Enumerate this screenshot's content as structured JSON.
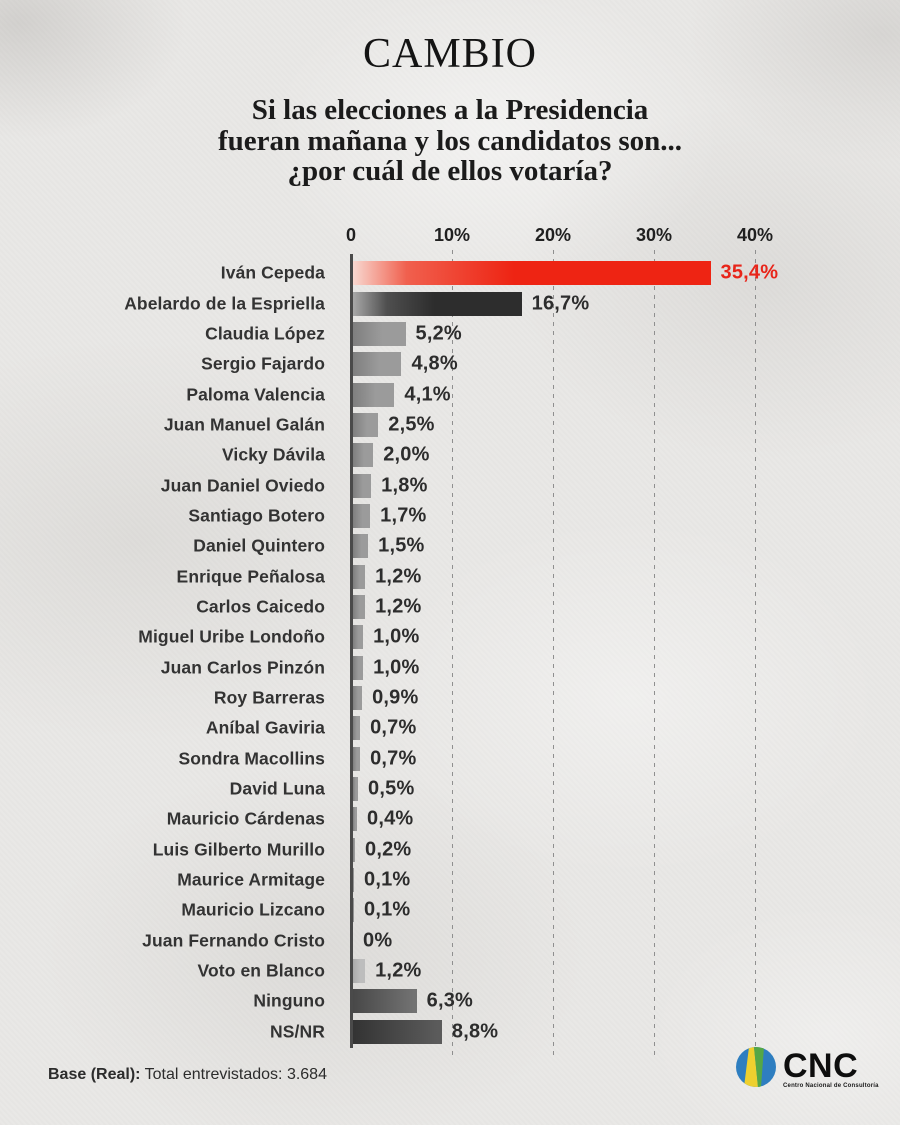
{
  "header": {
    "brand": "CAMBIO",
    "title_lines": [
      "Si las elecciones a la Presidencia",
      "fueran mañana y los candidatos son...",
      "¿por cuál de ellos votaría?"
    ]
  },
  "chart_data": {
    "type": "bar",
    "orientation": "horizontal",
    "title": "Si las elecciones a la Presidencia fueran mañana y los candidatos son... ¿por cuál de ellos votaría?",
    "xlabel": "",
    "ylabel": "",
    "xlim": [
      0,
      40
    ],
    "grid": "vertical-dashed",
    "legend": "none",
    "axis_ticks": [
      {
        "label": "0",
        "value": 0
      },
      {
        "label": "10%",
        "value": 10
      },
      {
        "label": "20%",
        "value": 20
      },
      {
        "label": "30%",
        "value": 30
      },
      {
        "label": "40%",
        "value": 40
      }
    ],
    "categories": [
      "Iván Cepeda",
      "Abelardo de la Espriella",
      "Claudia López",
      "Sergio Fajardo",
      "Paloma Valencia",
      "Juan Manuel Galán",
      "Vicky Dávila",
      "Juan Daniel Oviedo",
      "Santiago Botero",
      "Daniel Quintero",
      "Enrique Peñalosa",
      "Carlos Caicedo",
      "Miguel Uribe Londoño",
      "Juan Carlos Pinzón",
      "Roy Barreras",
      "Aníbal Gaviria",
      "Sondra Macollins",
      "David Luna",
      "Mauricio Cárdenas",
      "Luis Gilberto Murillo",
      "Maurice Armitage",
      "Mauricio Lizcano",
      "Juan Fernando Cristo",
      "Voto en Blanco",
      "Ninguno",
      "NS/NR"
    ],
    "values": [
      35.4,
      16.7,
      5.2,
      4.8,
      4.1,
      2.5,
      2.0,
      1.8,
      1.7,
      1.5,
      1.2,
      1.2,
      1.0,
      1.0,
      0.9,
      0.7,
      0.7,
      0.5,
      0.4,
      0.2,
      0.1,
      0.1,
      0,
      1.2,
      6.3,
      8.8
    ],
    "value_labels": [
      "35,4%",
      "16,7%",
      "5,2%",
      "4,8%",
      "4,1%",
      "2,5%",
      "2,0%",
      "1,8%",
      "1,7%",
      "1,5%",
      "1,2%",
      "1,2%",
      "1,0%",
      "1,0%",
      "0,9%",
      "0,7%",
      "0,7%",
      "0,5%",
      "0,4%",
      "0,2%",
      "0,1%",
      "0,1%",
      "0%",
      "1,2%",
      "6,3%",
      "8,8%"
    ],
    "bar_styles": [
      "red",
      "dark",
      "gray",
      "gray",
      "gray",
      "gray",
      "gray",
      "gray",
      "gray",
      "gray",
      "gray",
      "gray",
      "gray",
      "gray",
      "gray",
      "gray",
      "gray",
      "gray",
      "gray",
      "gray",
      "gray",
      "gray",
      "none",
      "light",
      "mid",
      "deep"
    ]
  },
  "palette": {
    "red": [
      "#f8d8d0 0%",
      "#f0604e 15%",
      "#ee2413 45%"
    ],
    "dark": [
      "#a8a8a8 0%",
      "#4f4f4f 20%",
      "#2d2d2d 48%"
    ],
    "gray": [
      "#7f7f7f 0%",
      "#9b9b9b 55%"
    ],
    "light": [
      "#aaaaaa 0%",
      "#bdbdbd 60%"
    ],
    "mid": [
      "#484848 0%",
      "#727272 95%"
    ],
    "deep": [
      "#333333 0%",
      "#5b5b5b 95%"
    ],
    "none": [
      "transparent 0%",
      "transparent 100%"
    ]
  },
  "colors": {
    "accent_red": "#e8251a",
    "value_text": "#2d2d2d",
    "label_text": "#333333",
    "axis_line": "#4a4a4a",
    "grid_line": "#8f8f8f"
  },
  "footer": {
    "base_label": "Base (Real):",
    "base_text": "Total entrevistados: 3.684"
  },
  "logo": {
    "name": "CNC",
    "tagline": "Centro Nacional de Consultoría",
    "blue": "#2e7ec0",
    "yellow": "#eed02f",
    "green": "#55a746"
  }
}
